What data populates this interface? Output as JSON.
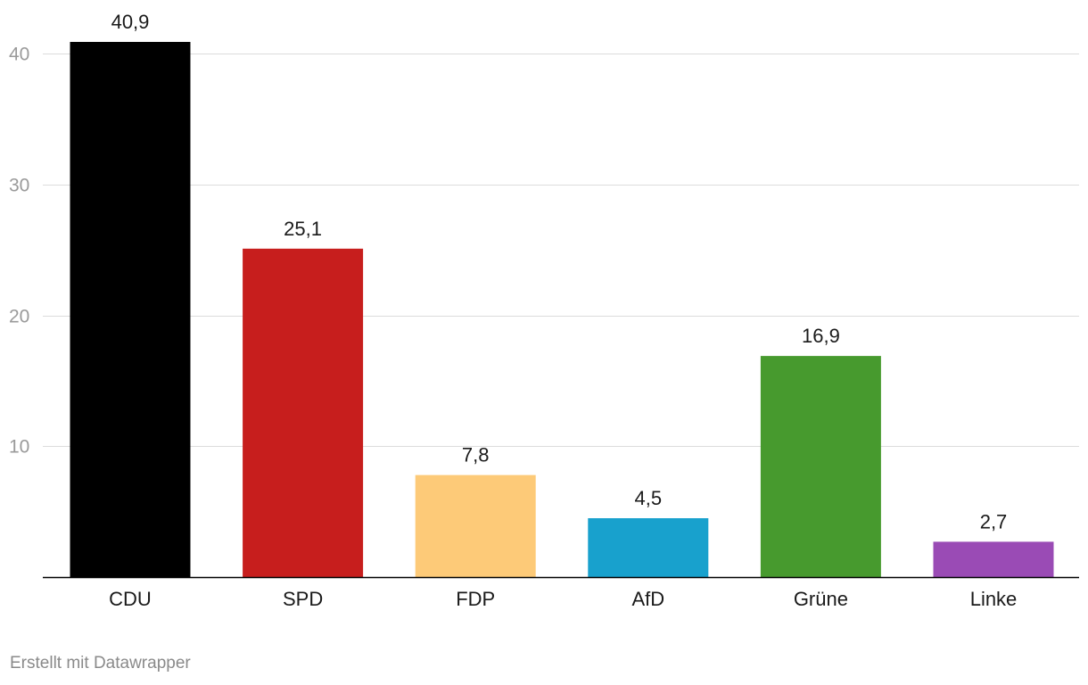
{
  "chart_data": {
    "type": "bar",
    "title": "",
    "xlabel": "",
    "ylabel": "",
    "categories": [
      "CDU",
      "SPD",
      "FDP",
      "AfD",
      "Grüne",
      "Linke"
    ],
    "values": [
      40.9,
      25.1,
      7.8,
      4.5,
      16.9,
      2.7
    ],
    "value_labels": [
      "40,9",
      "25,1",
      "7,8",
      "4,5",
      "16,9",
      "2,7"
    ],
    "colors": [
      "#000000",
      "#c71e1d",
      "#fdca78",
      "#18a1cd",
      "#479a2e",
      "#9a4bb5"
    ],
    "ylim": [
      0,
      40.9
    ],
    "yticks": [
      10,
      20,
      30,
      40
    ],
    "ytick_labels": [
      "10",
      "20",
      "30",
      "40"
    ],
    "grid": true
  },
  "footer": {
    "credit": "Erstellt mit Datawrapper"
  }
}
